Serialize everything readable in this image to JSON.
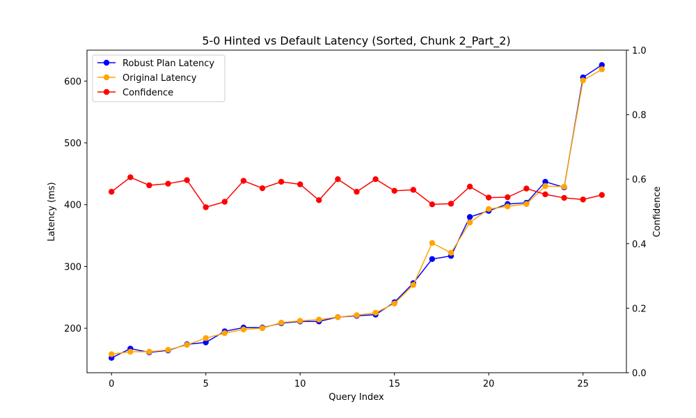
{
  "chart_data": {
    "type": "line",
    "title": "5-0 Hinted vs Default Latency (Sorted, Chunk 2_Part_2)",
    "xlabel": "Query Index",
    "ylabel": "Latency (ms)",
    "y2label": "Confidence",
    "xlim": [
      -1.3,
      27.3
    ],
    "ylim": [
      128,
      650
    ],
    "y2lim": [
      0.0,
      1.0
    ],
    "xticks": [
      0,
      5,
      10,
      15,
      20,
      25
    ],
    "yticks": [
      200,
      300,
      400,
      500,
      600
    ],
    "y2ticks": [
      0.0,
      0.2,
      0.4,
      0.6,
      0.8,
      1.0
    ],
    "grid": false,
    "legend_position": "upper-left",
    "x": [
      0,
      1,
      2,
      3,
      4,
      5,
      6,
      7,
      8,
      9,
      10,
      11,
      12,
      13,
      14,
      15,
      16,
      17,
      18,
      19,
      20,
      21,
      22,
      23,
      24,
      25,
      26
    ],
    "series": [
      {
        "name": "Robust Plan Latency",
        "axis": "left",
        "color": "#0000ff",
        "values": [
          152,
          167,
          161,
          164,
          174,
          177,
          195,
          201,
          201,
          208,
          211,
          211,
          218,
          220,
          222,
          242,
          273,
          312,
          317,
          380,
          390,
          401,
          403,
          437,
          428,
          606,
          626
        ]
      },
      {
        "name": "Original Latency",
        "axis": "left",
        "color": "#ffa500",
        "values": [
          158,
          162,
          162,
          165,
          173,
          184,
          192,
          198,
          200,
          209,
          212,
          214,
          218,
          221,
          225,
          240,
          270,
          338,
          322,
          371,
          393,
          397,
          401,
          430,
          429,
          601,
          619
        ]
      },
      {
        "name": "Confidence",
        "axis": "right",
        "color": "#ff0000",
        "values": [
          0.561,
          0.606,
          0.581,
          0.586,
          0.597,
          0.513,
          0.53,
          0.595,
          0.572,
          0.592,
          0.584,
          0.535,
          0.6,
          0.561,
          0.6,
          0.564,
          0.567,
          0.522,
          0.524,
          0.577,
          0.543,
          0.544,
          0.571,
          0.553,
          0.542,
          0.537,
          0.551
        ]
      }
    ]
  }
}
